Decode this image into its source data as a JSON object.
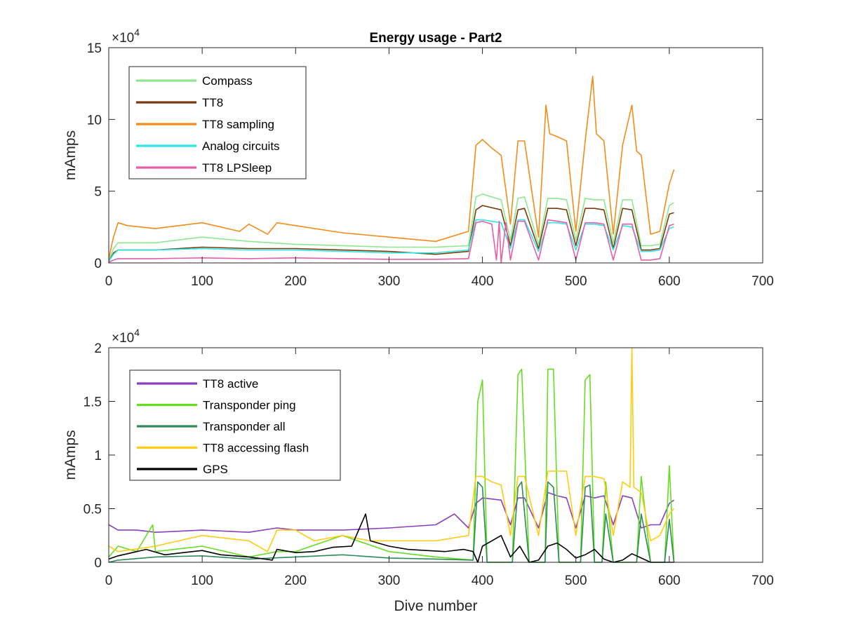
{
  "chart_data": [
    {
      "type": "line",
      "title": "Energy usage - Part2",
      "xlabel": "",
      "ylabel": "mAmps",
      "xlim": [
        0,
        700
      ],
      "ylim": [
        0,
        150000
      ],
      "y_multiplier": {
        "base": "×10",
        "exponent": "4"
      },
      "xticks": [
        "0",
        "100",
        "200",
        "300",
        "400",
        "500",
        "600",
        "700"
      ],
      "yticks": [
        "0",
        "5",
        "10",
        "15"
      ],
      "grid": false,
      "legend_position": "top-left",
      "series": [
        {
          "name": "Compass",
          "color": "#8fe88f",
          "x": [
            0,
            5,
            10,
            50,
            100,
            150,
            200,
            250,
            300,
            350,
            385,
            393,
            400,
            420,
            430,
            438,
            445,
            460,
            470,
            480,
            490,
            500,
            510,
            520,
            530,
            540,
            550,
            560,
            570,
            580,
            590,
            600,
            605
          ],
          "y": [
            2000,
            10000,
            14000,
            14000,
            18000,
            15000,
            13000,
            12000,
            11000,
            11000,
            12000,
            46000,
            48000,
            44000,
            16000,
            45000,
            46000,
            13000,
            45000,
            45000,
            44000,
            16000,
            45000,
            44000,
            44000,
            14000,
            44000,
            44000,
            12000,
            12000,
            13000,
            40000,
            42000
          ]
        },
        {
          "name": "TT8",
          "color": "#7a3b0c",
          "x": [
            0,
            5,
            10,
            50,
            100,
            150,
            200,
            250,
            300,
            350,
            385,
            393,
            400,
            420,
            430,
            438,
            445,
            460,
            470,
            480,
            490,
            500,
            510,
            520,
            530,
            540,
            550,
            560,
            570,
            580,
            590,
            600,
            605
          ],
          "y": [
            1000,
            7000,
            9000,
            9000,
            11000,
            10000,
            10000,
            9000,
            8000,
            6000,
            8000,
            37000,
            40000,
            37000,
            12000,
            37000,
            38000,
            10000,
            38000,
            38000,
            37000,
            12000,
            38000,
            38000,
            37000,
            10000,
            38000,
            37000,
            9000,
            9000,
            10000,
            34000,
            35000
          ]
        },
        {
          "name": "TT8 sampling",
          "color": "#f28c1c",
          "x": [
            0,
            5,
            10,
            20,
            50,
            100,
            140,
            150,
            170,
            180,
            200,
            250,
            300,
            350,
            385,
            393,
            400,
            410,
            420,
            430,
            438,
            445,
            460,
            468,
            472,
            480,
            490,
            500,
            510,
            518,
            522,
            530,
            540,
            550,
            560,
            565,
            570,
            580,
            590,
            600,
            605
          ],
          "y": [
            3000,
            18000,
            28000,
            26000,
            24000,
            28000,
            22000,
            27000,
            20000,
            28000,
            26000,
            21000,
            18000,
            15000,
            22000,
            82000,
            86000,
            80000,
            75000,
            27000,
            85000,
            85000,
            18000,
            110000,
            90000,
            88000,
            85000,
            22000,
            85000,
            130000,
            90000,
            85000,
            20000,
            82000,
            110000,
            78000,
            75000,
            20000,
            22000,
            55000,
            65000
          ]
        },
        {
          "name": "Analog circuits",
          "color": "#2fe6e6",
          "x": [
            0,
            5,
            10,
            50,
            100,
            150,
            200,
            250,
            300,
            350,
            385,
            393,
            400,
            420,
            430,
            438,
            445,
            460,
            470,
            480,
            490,
            500,
            510,
            520,
            530,
            540,
            550,
            560,
            570,
            580,
            590,
            600,
            605
          ],
          "y": [
            1000,
            6000,
            9000,
            9000,
            10000,
            9000,
            9000,
            8000,
            7000,
            7000,
            9000,
            30000,
            30000,
            28000,
            10000,
            30000,
            30000,
            8000,
            28000,
            28000,
            27000,
            9000,
            27000,
            27000,
            26000,
            9000,
            26000,
            25000,
            8000,
            8000,
            9000,
            24000,
            25000
          ]
        },
        {
          "name": "TT8 LPSleep",
          "color": "#e75fa6",
          "x": [
            0,
            5,
            10,
            50,
            100,
            150,
            200,
            250,
            300,
            350,
            385,
            393,
            400,
            410,
            415,
            418,
            420,
            425,
            430,
            438,
            445,
            460,
            470,
            480,
            490,
            500,
            510,
            520,
            530,
            540,
            550,
            560,
            570,
            580,
            590,
            600,
            605
          ],
          "y": [
            500,
            2000,
            3000,
            3000,
            3500,
            3000,
            3500,
            3000,
            2500,
            2500,
            3000,
            28000,
            29000,
            27000,
            2000,
            29000,
            0,
            28000,
            2000,
            29000,
            29000,
            2000,
            30000,
            29000,
            28000,
            2000,
            28000,
            28000,
            27000,
            2000,
            27000,
            27000,
            2000,
            2000,
            3000,
            26000,
            27000
          ]
        }
      ]
    },
    {
      "type": "line",
      "title": "",
      "xlabel": "Dive number",
      "ylabel": "mAmps",
      "xlim": [
        0,
        700
      ],
      "ylim": [
        0,
        20000
      ],
      "y_multiplier": {
        "base": "×10",
        "exponent": "4"
      },
      "xticks": [
        "0",
        "100",
        "200",
        "300",
        "400",
        "500",
        "600",
        "700"
      ],
      "yticks": [
        "0",
        "0.5",
        "1",
        "1.5",
        "2"
      ],
      "grid": false,
      "legend_position": "top-left",
      "series": [
        {
          "name": "TT8 active",
          "color": "#8a3fbf",
          "x": [
            0,
            10,
            30,
            50,
            100,
            150,
            180,
            200,
            250,
            300,
            350,
            370,
            385,
            393,
            400,
            420,
            430,
            438,
            445,
            460,
            470,
            480,
            490,
            500,
            510,
            520,
            530,
            540,
            550,
            560,
            570,
            580,
            590,
            600,
            605
          ],
          "y": [
            3500,
            3000,
            3000,
            2800,
            3000,
            2800,
            3200,
            3000,
            3000,
            3200,
            3500,
            4500,
            3200,
            5500,
            6000,
            5800,
            3500,
            6000,
            6000,
            3200,
            6500,
            6200,
            6000,
            3200,
            6200,
            6000,
            6200,
            3500,
            6200,
            6000,
            3200,
            3500,
            3500,
            5500,
            5800
          ]
        },
        {
          "name": "Transponder ping",
          "color": "#66dd22",
          "x": [
            0,
            10,
            30,
            47,
            50,
            100,
            150,
            180,
            200,
            250,
            300,
            350,
            390,
            395,
            400,
            405,
            420,
            432,
            438,
            442,
            450,
            460,
            467,
            470,
            476,
            482,
            495,
            505,
            510,
            515,
            520,
            528,
            532,
            540,
            552,
            558,
            565,
            570,
            580,
            595,
            600,
            605
          ],
          "y": [
            500,
            1500,
            1000,
            3500,
            1000,
            1500,
            500,
            1000,
            1000,
            2500,
            1000,
            500,
            200,
            15000,
            17000,
            0,
            0,
            0,
            17500,
            18000,
            0,
            0,
            0,
            18000,
            18000,
            0,
            0,
            0,
            17000,
            17500,
            0,
            0,
            7500,
            0,
            0,
            0,
            0,
            8000,
            0,
            0,
            9000,
            0
          ]
        },
        {
          "name": "Transponder all",
          "color": "#2e8b57",
          "x": [
            0,
            10,
            50,
            100,
            150,
            200,
            250,
            300,
            350,
            390,
            395,
            400,
            405,
            420,
            432,
            438,
            442,
            450,
            460,
            467,
            470,
            476,
            482,
            495,
            505,
            510,
            515,
            520,
            528,
            532,
            540,
            552,
            558,
            565,
            570,
            580,
            595,
            600,
            605
          ],
          "y": [
            0,
            200,
            500,
            600,
            300,
            500,
            700,
            400,
            300,
            200,
            7500,
            7000,
            0,
            0,
            0,
            7000,
            7500,
            0,
            0,
            0,
            7500,
            7000,
            0,
            0,
            0,
            7000,
            7200,
            0,
            0,
            4500,
            0,
            0,
            0,
            0,
            4500,
            0,
            0,
            4000,
            0
          ]
        },
        {
          "name": "TT8 accessing flash",
          "color": "#ffcc11",
          "x": [
            0,
            10,
            50,
            100,
            150,
            170,
            180,
            200,
            220,
            250,
            280,
            300,
            350,
            385,
            393,
            400,
            410,
            420,
            430,
            438,
            445,
            460,
            470,
            480,
            490,
            500,
            510,
            520,
            530,
            540,
            550,
            558,
            560,
            562,
            570,
            580,
            590,
            600,
            605
          ],
          "y": [
            1500,
            1000,
            1500,
            2500,
            2000,
            1000,
            3000,
            3000,
            2000,
            2500,
            2000,
            2000,
            2000,
            2500,
            8000,
            8000,
            7500,
            7200,
            2500,
            8000,
            8000,
            2500,
            8500,
            8500,
            8500,
            2500,
            8000,
            8000,
            7800,
            2500,
            7500,
            7000,
            20000,
            7000,
            6500,
            2000,
            2500,
            4500,
            5000
          ]
        },
        {
          "name": "GPS",
          "color": "#000000",
          "x": [
            0,
            10,
            20,
            40,
            60,
            80,
            100,
            120,
            150,
            175,
            180,
            200,
            220,
            240,
            260,
            275,
            280,
            300,
            320,
            340,
            360,
            380,
            390,
            395,
            400,
            410,
            420,
            430,
            440,
            450,
            460,
            470,
            480,
            490,
            500,
            510,
            520,
            530,
            540,
            550,
            560,
            570,
            580,
            600,
            605
          ],
          "y": [
            300,
            600,
            800,
            1200,
            700,
            900,
            1100,
            700,
            500,
            200,
            1200,
            900,
            1000,
            1400,
            1500,
            4500,
            2000,
            1500,
            1200,
            1100,
            1000,
            1200,
            1000,
            0,
            1500,
            2000,
            2500,
            500,
            1500,
            0,
            200,
            1500,
            1800,
            1200,
            400,
            700,
            1200,
            300,
            0,
            200,
            800,
            400,
            0,
            0,
            0
          ]
        }
      ]
    }
  ]
}
